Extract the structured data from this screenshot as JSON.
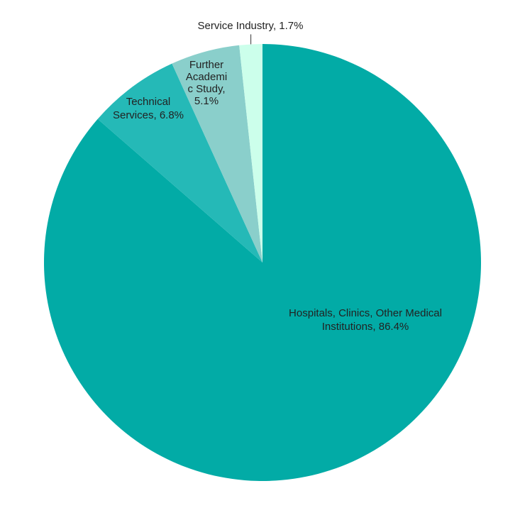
{
  "chart_data": {
    "type": "pie",
    "title": "",
    "slices": [
      {
        "label": "Hospitals, Clinics, Other Medical Institutions",
        "value": 86.4,
        "color": "#02ABA6",
        "text_lines": [
          "Hospitals, Clinics, Other Medical",
          "Institutions,  86.4%"
        ]
      },
      {
        "label": "Technical Services",
        "value": 6.8,
        "color": "#25B9B7",
        "text_lines": [
          "Technical",
          "Services, 6.8%"
        ]
      },
      {
        "label": "Further Academic Study",
        "value": 5.1,
        "color": "#8ACFCB",
        "text_lines": [
          "Further",
          "Academi",
          "c Study,",
          "5.1%"
        ]
      },
      {
        "label": "Service Industry",
        "value": 1.7,
        "color": "#CCFFEB",
        "text_lines": [
          "Service Industry,  1.7%"
        ]
      }
    ],
    "start_angle": "12 o'clock",
    "direction": "clockwise",
    "legend": "none"
  }
}
